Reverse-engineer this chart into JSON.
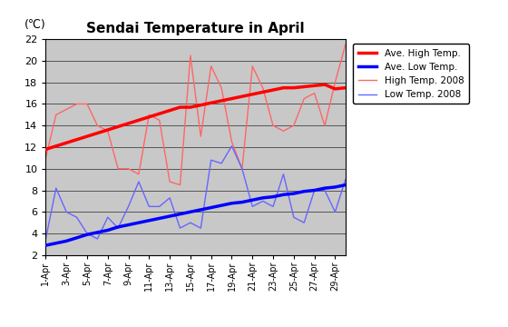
{
  "title": "Sendai Temperature in April",
  "ylabel": "(℃)",
  "ylim": [
    2,
    22
  ],
  "yticks": [
    2,
    4,
    6,
    8,
    10,
    12,
    14,
    16,
    18,
    20,
    22
  ],
  "days": [
    1,
    2,
    3,
    4,
    5,
    6,
    7,
    8,
    9,
    10,
    11,
    12,
    13,
    14,
    15,
    16,
    17,
    18,
    19,
    20,
    21,
    22,
    23,
    24,
    25,
    26,
    27,
    28,
    29,
    30
  ],
  "xlabels": [
    "1-Apr",
    "3-Apr",
    "5-Apr",
    "7-Apr",
    "9-Apr",
    "11-Apr",
    "13-Apr",
    "15-Apr",
    "17-Apr",
    "19-Apr",
    "21-Apr",
    "23-Apr",
    "25-Apr",
    "27-Apr",
    "29-Apr"
  ],
  "xlabel_days": [
    1,
    3,
    5,
    7,
    9,
    11,
    13,
    15,
    17,
    19,
    21,
    23,
    25,
    27,
    29
  ],
  "high_2008": [
    11.0,
    15.0,
    15.5,
    16.0,
    16.0,
    14.0,
    13.5,
    10.0,
    10.0,
    9.5,
    15.0,
    14.5,
    8.8,
    8.5,
    20.5,
    13.0,
    19.5,
    17.5,
    12.5,
    10.0,
    19.5,
    17.5,
    14.0,
    13.5,
    14.0,
    16.5,
    17.0,
    14.0,
    18.0,
    21.5
  ],
  "low_2008": [
    3.5,
    8.2,
    6.0,
    5.5,
    4.0,
    3.5,
    5.5,
    4.5,
    6.5,
    8.8,
    6.5,
    6.5,
    7.3,
    4.5,
    5.0,
    4.5,
    10.8,
    10.5,
    12.1,
    10.0,
    6.5,
    7.0,
    6.5,
    9.5,
    5.5,
    5.0,
    8.0,
    8.0,
    6.0,
    9.0
  ],
  "ave_high": [
    11.8,
    12.1,
    12.4,
    12.7,
    13.0,
    13.3,
    13.6,
    13.9,
    14.2,
    14.5,
    14.8,
    15.1,
    15.4,
    15.7,
    15.7,
    15.9,
    16.1,
    16.3,
    16.5,
    16.7,
    16.9,
    17.1,
    17.3,
    17.5,
    17.5,
    17.6,
    17.7,
    17.8,
    17.4,
    17.5
  ],
  "ave_low": [
    2.9,
    3.1,
    3.3,
    3.6,
    3.9,
    4.1,
    4.3,
    4.6,
    4.8,
    5.0,
    5.2,
    5.4,
    5.6,
    5.8,
    6.0,
    6.2,
    6.4,
    6.6,
    6.8,
    6.9,
    7.1,
    7.3,
    7.4,
    7.6,
    7.7,
    7.9,
    8.0,
    8.2,
    8.3,
    8.5
  ],
  "color_ave_high": "#ff0000",
  "color_ave_low": "#0000ff",
  "color_high_2008": "#ff6666",
  "color_low_2008": "#6666ff",
  "plot_bg_color": "#c8c8c8",
  "legend_labels": [
    "Ave. High Temp.",
    "Ave. Low Temp.",
    "High Temp. 2008",
    "Low Temp. 2008"
  ]
}
